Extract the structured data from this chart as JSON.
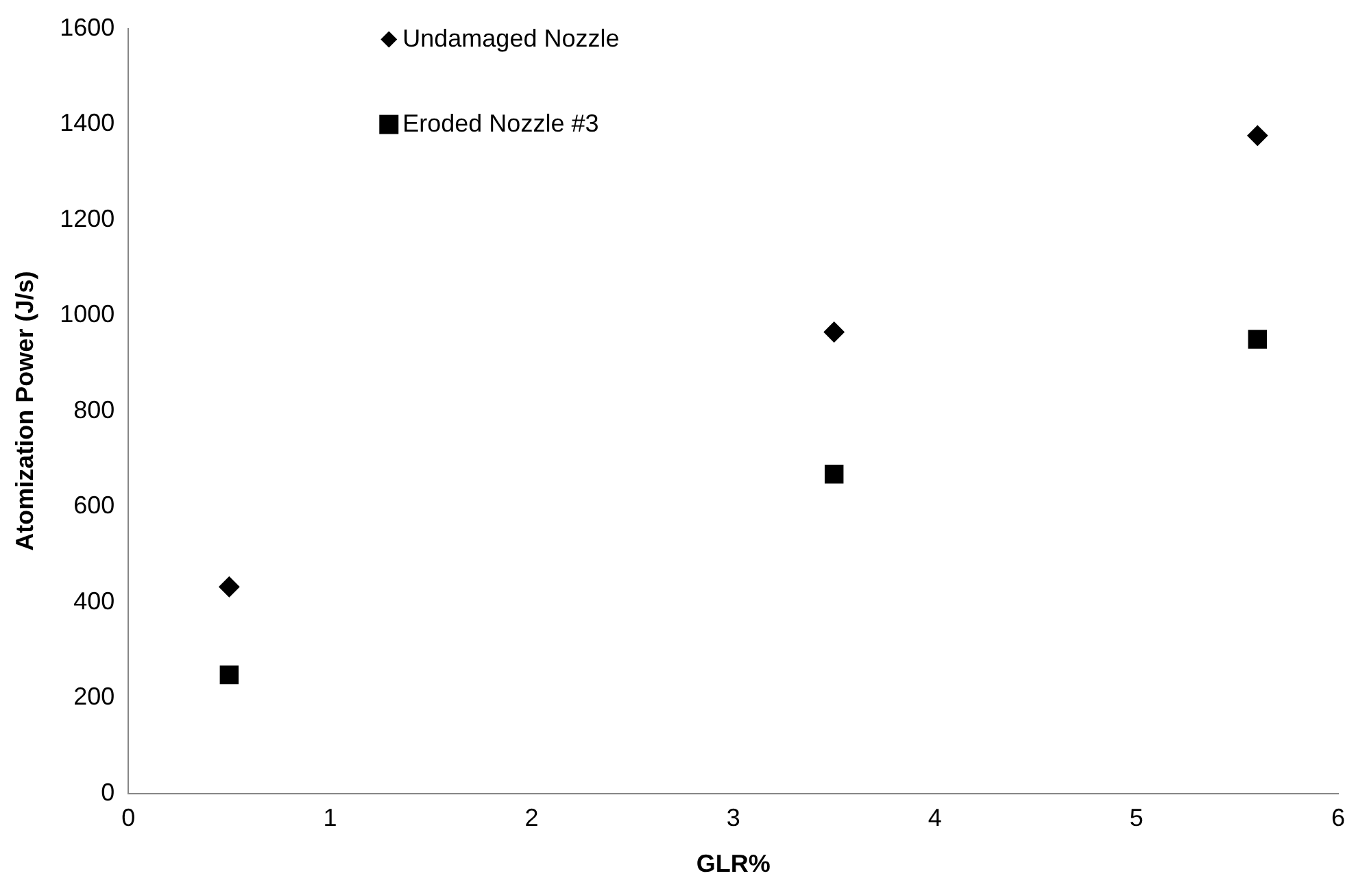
{
  "chart_data": {
    "type": "scatter",
    "xlabel": "GLR%",
    "ylabel": "Atomization Power (J/s)",
    "xlim": [
      0,
      6
    ],
    "xticks": [
      0,
      1,
      2,
      3,
      4,
      5,
      6
    ],
    "ylim": [
      0,
      1600
    ],
    "yticks": [
      0,
      200,
      400,
      600,
      800,
      1000,
      1200,
      1400,
      1600
    ],
    "grid": false,
    "legend": "top left",
    "series": [
      {
        "name": "Undamaged Nozzle",
        "color": "#000000",
        "marker": "diamond",
        "x": [
          0.5,
          3.5,
          5.6
        ],
        "values": [
          432,
          965,
          1376
        ]
      },
      {
        "name": "Eroded Nozzle #3",
        "color": "#000000",
        "marker": "square",
        "x": [
          0.5,
          3.5,
          5.6
        ],
        "values": [
          248,
          668,
          950
        ]
      }
    ]
  }
}
